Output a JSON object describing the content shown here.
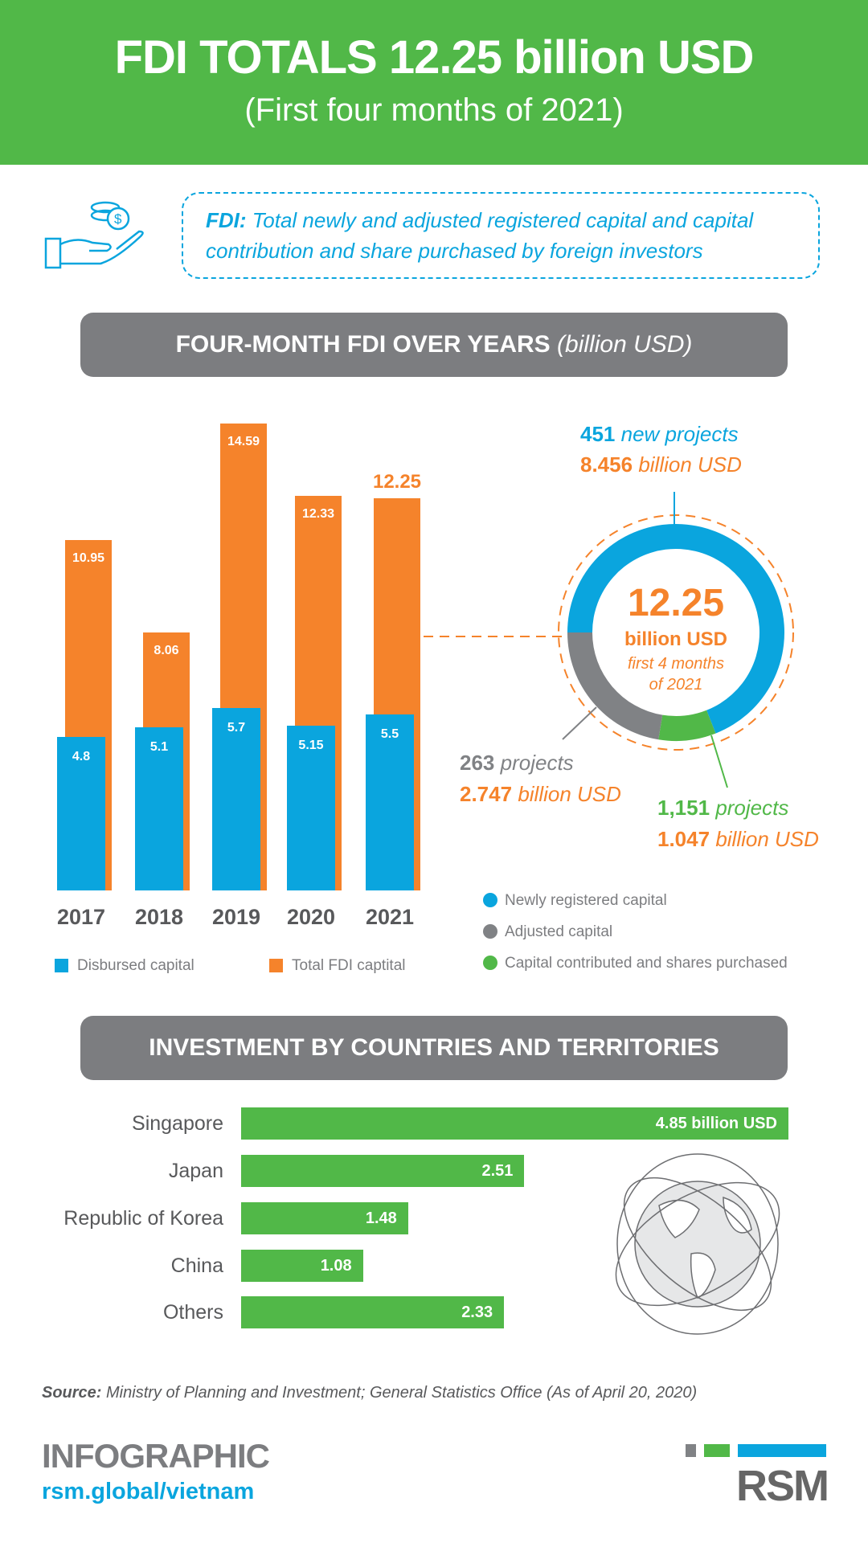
{
  "header": {
    "title": "FDI TOTALS 12.25 billion USD",
    "subtitle": "(First four months of 2021)"
  },
  "definition": {
    "term": "FDI:",
    "text": " Total newly and adjusted registered capital and capital contribution and share purchased by foreign investors",
    "icon": "hand-coins-icon"
  },
  "section1": {
    "title": "FOUR-MONTH FDI OVER YEARS",
    "unit": "(billion USD)"
  },
  "chart_data": [
    {
      "type": "bar",
      "title": "FOUR-MONTH FDI OVER YEARS (billion USD)",
      "categories": [
        "2017",
        "2018",
        "2019",
        "2020",
        "2021"
      ],
      "series": [
        {
          "name": "Disbursed capital",
          "color": "#0aa5de",
          "values": [
            4.8,
            5.1,
            5.7,
            5.15,
            5.5
          ],
          "labels": [
            "4.8",
            "5.1",
            "5.7",
            "5.15",
            "5.5"
          ]
        },
        {
          "name": "Total FDI captital",
          "color": "#f5832b",
          "values": [
            10.95,
            8.06,
            14.59,
            12.33,
            12.25
          ],
          "labels": [
            "10.95",
            "8.06",
            "14.59",
            "12.33",
            "12.25"
          ]
        }
      ],
      "ylim": [
        0,
        15
      ]
    },
    {
      "type": "pie",
      "title": "12.25 billion USD first 4 months of 2021",
      "center": {
        "value": "12.25",
        "unit": "billion USD",
        "note1": "first 4 months",
        "note2": "of 2021"
      },
      "slices": [
        {
          "name": "Newly registered capital",
          "value": 8.456,
          "color": "#0aa5de",
          "count": "451",
          "count_label": "new projects",
          "amount": "8.456",
          "amount_unit": "billion USD"
        },
        {
          "name": "Capital contributed and shares purchased",
          "value": 1.047,
          "color": "#51b848",
          "count": "1,151",
          "count_label": "projects",
          "amount": "1.047",
          "amount_unit": "billion USD"
        },
        {
          "name": "Adjusted capital",
          "value": 2.747,
          "color": "#808285",
          "count": "263",
          "count_label": "projects",
          "amount": "2.747",
          "amount_unit": "billion USD"
        }
      ]
    },
    {
      "type": "bar",
      "orientation": "horizontal",
      "title": "INVESTMENT BY COUNTRIES AND TERRITORIES",
      "categories": [
        "Singapore",
        "Japan",
        "Republic of Korea",
        "China",
        "Others"
      ],
      "values": [
        4.85,
        2.51,
        1.48,
        1.08,
        2.33
      ],
      "labels": [
        "4.85 billion USD",
        "2.51",
        "1.48",
        "1.08",
        "2.33"
      ],
      "color": "#51b848"
    }
  ],
  "section2": {
    "title": "INVESTMENT BY COUNTRIES AND TERRITORIES"
  },
  "source": {
    "label": "Source:",
    "text": " Ministry of Planning and Investment; General Statistics Office (As of April 20, 2020)"
  },
  "footer": {
    "infographic": "INFOGRAPHIC",
    "url": "rsm.global/vietnam",
    "logo": "RSM"
  }
}
